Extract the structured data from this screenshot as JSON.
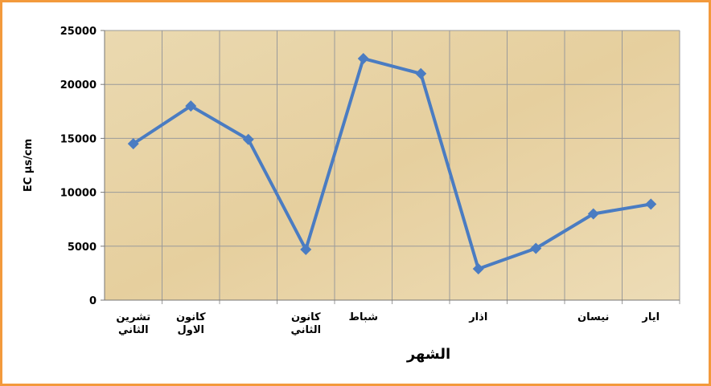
{
  "chart_data": {
    "type": "line",
    "x_label": "الشهر",
    "y_label": "EC µs/cm",
    "categories": [
      "تشرين الثاني",
      "كانون الاول",
      null,
      "كانون الثاني",
      "شباط",
      null,
      "اذار",
      null,
      "نيسان",
      "ايار"
    ],
    "series": [
      {
        "name": "EC",
        "color": "#4a7cc2",
        "values": [
          14500,
          18000,
          14900,
          4700,
          22400,
          21000,
          2900,
          4800,
          8000,
          8900
        ]
      }
    ],
    "ylim": [
      0,
      25000
    ],
    "yticks": [
      0,
      5000,
      10000,
      15000,
      20000,
      25000
    ],
    "grid": true
  }
}
